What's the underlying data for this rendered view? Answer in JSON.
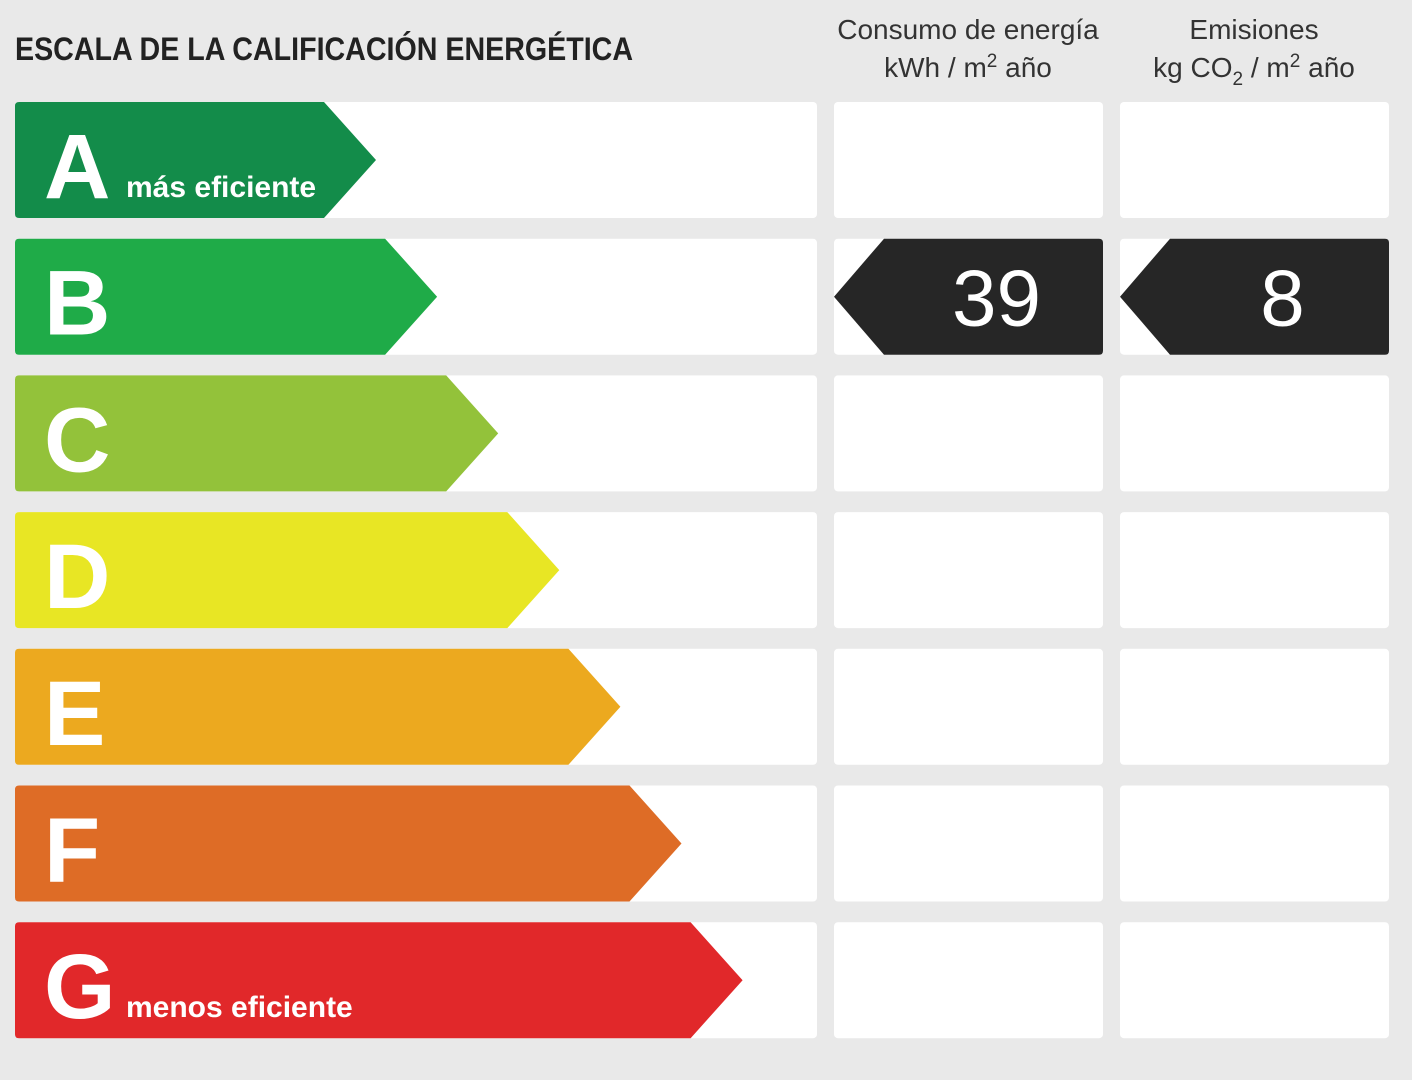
{
  "title": "ESCALA DE LA CALIFICACIÓN ENERGÉTICA",
  "columns": [
    {
      "title": "Consumo de energía",
      "unit": [
        "kWh / m",
        "2",
        " año"
      ]
    },
    {
      "title": "Emisiones",
      "unit": [
        "kg CO",
        "2",
        " / m",
        "2",
        " año"
      ]
    }
  ],
  "rows": [
    {
      "letter": "A",
      "label": "más eficiente",
      "color": "#138c4a"
    },
    {
      "letter": "B",
      "color": "#1fab48"
    },
    {
      "letter": "C",
      "color": "#93c23a"
    },
    {
      "letter": "D",
      "color": "#e8e624"
    },
    {
      "letter": "E",
      "color": "#eca91f"
    },
    {
      "letter": "F",
      "color": "#de6c26"
    },
    {
      "letter": "G",
      "label": "menos eficiente",
      "color": "#e1282a"
    }
  ],
  "rating": {
    "letter": "B",
    "values": [
      39,
      8
    ]
  }
}
